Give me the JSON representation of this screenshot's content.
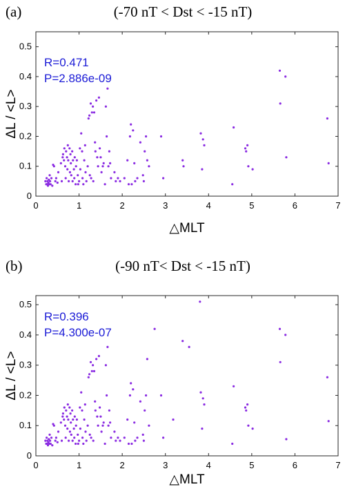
{
  "chart_data": [
    {
      "type": "scatter",
      "panel_label": "(a)",
      "title": "(-70 nT < Dst < -15 nT)",
      "xlabel": "△MLT",
      "ylabel": "ΔL / <L>",
      "xlim": [
        0,
        7
      ],
      "ylim": [
        0,
        0.55
      ],
      "xticks": [
        0,
        1,
        2,
        3,
        4,
        5,
        6,
        7
      ],
      "yticks": [
        0,
        0.1,
        0.2,
        0.3,
        0.4,
        0.5
      ],
      "xtick_labels": [
        "0",
        "1",
        "2",
        "3",
        "4",
        "5",
        "6",
        "7"
      ],
      "ytick_labels": [
        "0",
        "0.1",
        "0.2",
        "0.3",
        "0.4",
        "0.5"
      ],
      "grid": false,
      "point_color": "#8a2be2",
      "annotation_color": "#1a1ad6",
      "annotations": [
        "R=0.471",
        "P=2.886e-09"
      ],
      "points": [
        [
          0.22,
          0.05
        ],
        [
          0.24,
          0.04
        ],
        [
          0.25,
          0.06
        ],
        [
          0.26,
          0.04
        ],
        [
          0.27,
          0.05
        ],
        [
          0.28,
          0.035
        ],
        [
          0.29,
          0.045
        ],
        [
          0.3,
          0.055
        ],
        [
          0.31,
          0.04
        ],
        [
          0.32,
          0.07
        ],
        [
          0.33,
          0.05
        ],
        [
          0.34,
          0.04
        ],
        [
          0.36,
          0.06
        ],
        [
          0.38,
          0.035
        ],
        [
          0.4,
          0.105
        ],
        [
          0.42,
          0.1
        ],
        [
          0.45,
          0.05
        ],
        [
          0.47,
          0.06
        ],
        [
          0.5,
          0.045
        ],
        [
          0.52,
          0.08
        ],
        [
          0.58,
          0.11
        ],
        [
          0.6,
          0.05
        ],
        [
          0.62,
          0.13
        ],
        [
          0.63,
          0.14
        ],
        [
          0.65,
          0.12
        ],
        [
          0.66,
          0.16
        ],
        [
          0.68,
          0.1
        ],
        [
          0.69,
          0.06
        ],
        [
          0.7,
          0.15
        ],
        [
          0.72,
          0.13
        ],
        [
          0.73,
          0.09
        ],
        [
          0.74,
          0.17
        ],
        [
          0.75,
          0.12
        ],
        [
          0.76,
          0.05
        ],
        [
          0.78,
          0.16
        ],
        [
          0.79,
          0.08
        ],
        [
          0.8,
          0.14
        ],
        [
          0.81,
          0.11
        ],
        [
          0.82,
          0.07
        ],
        [
          0.84,
          0.15
        ],
        [
          0.85,
          0.05
        ],
        [
          0.86,
          0.12
        ],
        [
          0.88,
          0.09
        ],
        [
          0.89,
          0.06
        ],
        [
          0.9,
          0.13
        ],
        [
          0.92,
          0.04
        ],
        [
          0.93,
          0.1
        ],
        [
          0.95,
          0.12
        ],
        [
          0.97,
          0.07
        ],
        [
          0.98,
          0.04
        ],
        [
          1.0,
          0.05
        ],
        [
          1.02,
          0.16
        ],
        [
          1.03,
          0.09
        ],
        [
          1.05,
          0.21
        ],
        [
          1.07,
          0.15
        ],
        [
          1.08,
          0.06
        ],
        [
          1.1,
          0.04
        ],
        [
          1.12,
          0.12
        ],
        [
          1.14,
          0.17
        ],
        [
          1.15,
          0.08
        ],
        [
          1.17,
          0.05
        ],
        [
          1.2,
          0.1
        ],
        [
          1.22,
          0.26
        ],
        [
          1.24,
          0.27
        ],
        [
          1.25,
          0.07
        ],
        [
          1.27,
          0.31
        ],
        [
          1.28,
          0.06
        ],
        [
          1.3,
          0.28
        ],
        [
          1.32,
          0.3
        ],
        [
          1.33,
          0.05
        ],
        [
          1.35,
          0.28
        ],
        [
          1.37,
          0.18
        ],
        [
          1.38,
          0.15
        ],
        [
          1.4,
          0.32
        ],
        [
          1.42,
          0.13
        ],
        [
          1.44,
          0.1
        ],
        [
          1.46,
          0.33
        ],
        [
          1.48,
          0.16
        ],
        [
          1.5,
          0.13
        ],
        [
          1.52,
          0.08
        ],
        [
          1.55,
          0.1
        ],
        [
          1.57,
          0.11
        ],
        [
          1.6,
          0.04
        ],
        [
          1.62,
          0.3
        ],
        [
          1.64,
          0.2
        ],
        [
          1.66,
          0.36
        ],
        [
          1.68,
          0.1
        ],
        [
          1.7,
          0.15
        ],
        [
          1.72,
          0.11
        ],
        [
          1.74,
          0.06
        ],
        [
          1.82,
          0.08
        ],
        [
          1.85,
          0.05
        ],
        [
          1.9,
          0.06
        ],
        [
          1.95,
          0.05
        ],
        [
          2.05,
          0.06
        ],
        [
          2.12,
          0.12
        ],
        [
          2.15,
          0.04
        ],
        [
          2.18,
          0.2
        ],
        [
          2.2,
          0.24
        ],
        [
          2.22,
          0.04
        ],
        [
          2.25,
          0.22
        ],
        [
          2.28,
          0.11
        ],
        [
          2.3,
          0.05
        ],
        [
          2.35,
          0.06
        ],
        [
          2.42,
          0.18
        ],
        [
          2.48,
          0.07
        ],
        [
          2.5,
          0.05
        ],
        [
          2.52,
          0.15
        ],
        [
          2.55,
          0.2
        ],
        [
          2.58,
          0.12
        ],
        [
          2.62,
          0.1
        ],
        [
          2.9,
          0.2
        ],
        [
          2.95,
          0.06
        ],
        [
          3.4,
          0.12
        ],
        [
          3.42,
          0.1
        ],
        [
          3.82,
          0.21
        ],
        [
          3.85,
          0.09
        ],
        [
          3.87,
          0.19
        ],
        [
          3.9,
          0.17
        ],
        [
          4.55,
          0.04
        ],
        [
          4.58,
          0.23
        ],
        [
          4.85,
          0.16
        ],
        [
          4.87,
          0.15
        ],
        [
          4.9,
          0.17
        ],
        [
          4.92,
          0.1
        ],
        [
          5.02,
          0.09
        ],
        [
          5.65,
          0.42
        ],
        [
          5.66,
          0.31
        ],
        [
          5.78,
          0.4
        ],
        [
          5.8,
          0.13
        ],
        [
          6.75,
          0.26
        ],
        [
          6.78,
          0.11
        ]
      ]
    },
    {
      "type": "scatter",
      "panel_label": "(b)",
      "title": "(-90 nT< Dst < -15 nT)",
      "xlabel": "△MLT",
      "ylabel": "ΔL / <L>",
      "xlim": [
        0,
        7
      ],
      "ylim": [
        0,
        0.53
      ],
      "xticks": [
        0,
        1,
        2,
        3,
        4,
        5,
        6,
        7
      ],
      "yticks": [
        0,
        0.1,
        0.2,
        0.3,
        0.4,
        0.5
      ],
      "xtick_labels": [
        "0",
        "1",
        "2",
        "3",
        "4",
        "5",
        "6",
        "7"
      ],
      "ytick_labels": [
        "0",
        "0.1",
        "0.2",
        "0.3",
        "0.4",
        "0.5"
      ],
      "grid": false,
      "point_color": "#8a2be2",
      "annotation_color": "#1a1ad6",
      "annotations": [
        "R=0.396",
        "P=4.300e-07"
      ],
      "points": [
        [
          0.22,
          0.05
        ],
        [
          0.24,
          0.04
        ],
        [
          0.25,
          0.06
        ],
        [
          0.26,
          0.04
        ],
        [
          0.27,
          0.05
        ],
        [
          0.28,
          0.035
        ],
        [
          0.29,
          0.045
        ],
        [
          0.3,
          0.055
        ],
        [
          0.31,
          0.04
        ],
        [
          0.32,
          0.07
        ],
        [
          0.33,
          0.05
        ],
        [
          0.34,
          0.04
        ],
        [
          0.36,
          0.06
        ],
        [
          0.38,
          0.035
        ],
        [
          0.4,
          0.105
        ],
        [
          0.42,
          0.1
        ],
        [
          0.45,
          0.05
        ],
        [
          0.47,
          0.06
        ],
        [
          0.5,
          0.045
        ],
        [
          0.52,
          0.08
        ],
        [
          0.58,
          0.11
        ],
        [
          0.6,
          0.05
        ],
        [
          0.62,
          0.13
        ],
        [
          0.63,
          0.14
        ],
        [
          0.65,
          0.12
        ],
        [
          0.66,
          0.16
        ],
        [
          0.68,
          0.1
        ],
        [
          0.69,
          0.06
        ],
        [
          0.7,
          0.15
        ],
        [
          0.72,
          0.13
        ],
        [
          0.73,
          0.09
        ],
        [
          0.74,
          0.17
        ],
        [
          0.75,
          0.12
        ],
        [
          0.76,
          0.05
        ],
        [
          0.78,
          0.16
        ],
        [
          0.79,
          0.08
        ],
        [
          0.8,
          0.14
        ],
        [
          0.81,
          0.11
        ],
        [
          0.82,
          0.07
        ],
        [
          0.84,
          0.15
        ],
        [
          0.85,
          0.05
        ],
        [
          0.86,
          0.12
        ],
        [
          0.88,
          0.09
        ],
        [
          0.89,
          0.06
        ],
        [
          0.9,
          0.13
        ],
        [
          0.92,
          0.04
        ],
        [
          0.93,
          0.1
        ],
        [
          0.95,
          0.12
        ],
        [
          0.97,
          0.07
        ],
        [
          0.98,
          0.04
        ],
        [
          1.0,
          0.05
        ],
        [
          1.02,
          0.16
        ],
        [
          1.03,
          0.09
        ],
        [
          1.05,
          0.21
        ],
        [
          1.07,
          0.15
        ],
        [
          1.08,
          0.06
        ],
        [
          1.1,
          0.04
        ],
        [
          1.12,
          0.12
        ],
        [
          1.14,
          0.17
        ],
        [
          1.15,
          0.08
        ],
        [
          1.17,
          0.05
        ],
        [
          1.2,
          0.1
        ],
        [
          1.22,
          0.26
        ],
        [
          1.24,
          0.27
        ],
        [
          1.25,
          0.07
        ],
        [
          1.27,
          0.31
        ],
        [
          1.28,
          0.06
        ],
        [
          1.3,
          0.28
        ],
        [
          1.32,
          0.3
        ],
        [
          1.33,
          0.05
        ],
        [
          1.35,
          0.28
        ],
        [
          1.37,
          0.18
        ],
        [
          1.38,
          0.15
        ],
        [
          1.4,
          0.32
        ],
        [
          1.42,
          0.13
        ],
        [
          1.44,
          0.1
        ],
        [
          1.46,
          0.33
        ],
        [
          1.48,
          0.16
        ],
        [
          1.5,
          0.13
        ],
        [
          1.52,
          0.08
        ],
        [
          1.55,
          0.1
        ],
        [
          1.57,
          0.11
        ],
        [
          1.6,
          0.04
        ],
        [
          1.62,
          0.3
        ],
        [
          1.64,
          0.2
        ],
        [
          1.66,
          0.36
        ],
        [
          1.68,
          0.1
        ],
        [
          1.7,
          0.15
        ],
        [
          1.72,
          0.11
        ],
        [
          1.74,
          0.06
        ],
        [
          1.82,
          0.08
        ],
        [
          1.85,
          0.05
        ],
        [
          1.9,
          0.06
        ],
        [
          1.95,
          0.05
        ],
        [
          2.05,
          0.06
        ],
        [
          2.12,
          0.12
        ],
        [
          2.15,
          0.04
        ],
        [
          2.18,
          0.2
        ],
        [
          2.2,
          0.24
        ],
        [
          2.22,
          0.04
        ],
        [
          2.25,
          0.22
        ],
        [
          2.28,
          0.11
        ],
        [
          2.3,
          0.05
        ],
        [
          2.35,
          0.06
        ],
        [
          2.42,
          0.18
        ],
        [
          2.48,
          0.07
        ],
        [
          2.5,
          0.05
        ],
        [
          2.52,
          0.15
        ],
        [
          2.55,
          0.2
        ],
        [
          2.58,
          0.32
        ],
        [
          2.62,
          0.1
        ],
        [
          2.75,
          0.42
        ],
        [
          2.9,
          0.2
        ],
        [
          2.95,
          0.06
        ],
        [
          3.18,
          0.12
        ],
        [
          3.4,
          0.38
        ],
        [
          3.55,
          0.36
        ],
        [
          3.8,
          0.51
        ],
        [
          3.82,
          0.21
        ],
        [
          3.85,
          0.09
        ],
        [
          3.87,
          0.19
        ],
        [
          3.9,
          0.17
        ],
        [
          4.55,
          0.04
        ],
        [
          4.58,
          0.23
        ],
        [
          4.85,
          0.16
        ],
        [
          4.87,
          0.15
        ],
        [
          4.9,
          0.17
        ],
        [
          4.92,
          0.1
        ],
        [
          5.02,
          0.09
        ],
        [
          5.65,
          0.42
        ],
        [
          5.66,
          0.31
        ],
        [
          5.78,
          0.4
        ],
        [
          5.8,
          0.055
        ],
        [
          6.75,
          0.26
        ],
        [
          6.78,
          0.115
        ]
      ]
    }
  ]
}
